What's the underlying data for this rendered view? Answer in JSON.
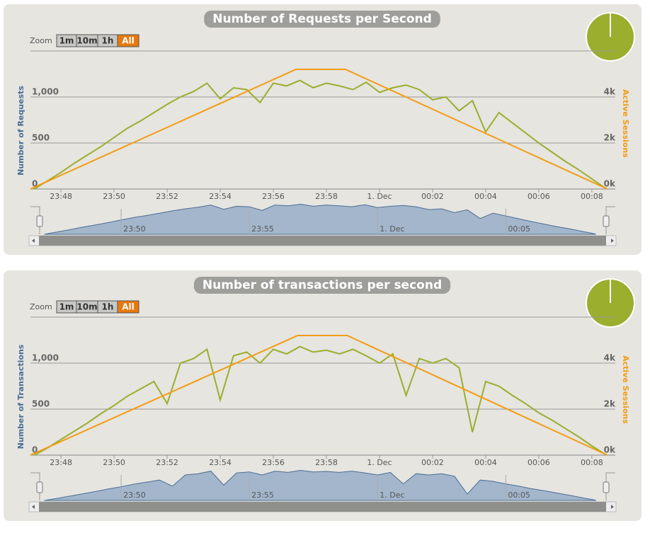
{
  "chart_data": [
    {
      "type": "line",
      "title": "Number of Requests per Second",
      "ylabel": "Number of Requests",
      "y2label": "Active Sessions",
      "zoom_label": "Zoom",
      "zoom_buttons": [
        "1m",
        "10m",
        "1h",
        "All"
      ],
      "zoom_selected": "All",
      "x": [
        "23:47",
        "23:47:30",
        "23:48",
        "23:48:30",
        "23:49",
        "23:49:30",
        "23:50",
        "23:50:30",
        "23:51",
        "23:51:30",
        "23:52",
        "23:52:30",
        "23:53",
        "23:53:30",
        "23:54",
        "23:54:30",
        "23:55",
        "23:55:30",
        "23:56",
        "23:56:30",
        "23:57",
        "23:57:30",
        "23:58",
        "23:58:30",
        "23:59",
        "23:59:30",
        "00:00",
        "00:00:30",
        "00:01",
        "00:01:30",
        "00:02",
        "00:02:30",
        "00:03",
        "00:03:30",
        "00:04",
        "00:04:30",
        "00:05",
        "00:05:30",
        "00:06",
        "00:06:30",
        "00:07",
        "00:07:30",
        "00:08",
        "00:08:30"
      ],
      "series": [
        {
          "color": "#9bae2e",
          "values": [
            0,
            90,
            180,
            280,
            370,
            460,
            560,
            660,
            740,
            830,
            920,
            1000,
            1060,
            1150,
            980,
            1100,
            1080,
            940,
            1150,
            1120,
            1180,
            1100,
            1150,
            1120,
            1080,
            1160,
            1050,
            1100,
            1130,
            1080,
            970,
            1000,
            850,
            960,
            620,
            830,
            720,
            610,
            500,
            400,
            300,
            210,
            110,
            10
          ]
        },
        {
          "color": "#f39c12",
          "axis": "y2",
          "x": [
            "23:46:51",
            "23:56:51",
            "23:58:43",
            "00:08:35"
          ],
          "values": [
            0,
            5200,
            5200,
            0
          ]
        }
      ],
      "xlim": [
        "23:46:51",
        "00:08:53"
      ],
      "xticks": [
        "23:48",
        "23:50",
        "23:52",
        "23:54",
        "23:56",
        "23:58",
        {
          "value": "00:00",
          "label": "1. Dec"
        },
        "00:02",
        "00:04",
        "00:06",
        "00:08"
      ],
      "ylim": [
        0,
        1500
      ],
      "yticks": [
        0,
        500,
        {
          "value": 1000,
          "label": "1,000"
        }
      ],
      "y2lim": [
        0,
        6000
      ],
      "y2ticks": [
        {
          "value": 0,
          "label": "0k"
        },
        {
          "value": 2000,
          "label": "2k"
        },
        {
          "value": 4000,
          "label": "4k"
        }
      ],
      "navigator_xticks": [
        "23:50",
        "23:55",
        {
          "value": "00:00",
          "label": "1. Dec"
        },
        "00:05"
      ],
      "grid": true
    },
    {
      "type": "line",
      "title": "Number of transactions per second",
      "ylabel": "Number of Transactions",
      "y2label": "Active Sessions",
      "zoom_label": "Zoom",
      "zoom_buttons": [
        "1m",
        "10m",
        "1h",
        "All"
      ],
      "zoom_selected": "All",
      "x": [
        "23:47",
        "23:47:30",
        "23:48",
        "23:48:30",
        "23:49",
        "23:49:30",
        "23:50",
        "23:50:30",
        "23:51",
        "23:51:30",
        "23:52",
        "23:52:30",
        "23:53",
        "23:53:30",
        "23:54",
        "23:54:30",
        "23:55",
        "23:55:30",
        "23:56",
        "23:56:30",
        "23:57",
        "23:57:30",
        "23:58",
        "23:58:30",
        "23:59",
        "23:59:30",
        "00:00",
        "00:00:30",
        "00:01",
        "00:01:30",
        "00:02",
        "00:02:30",
        "00:03",
        "00:03:30",
        "00:04",
        "00:04:30",
        "00:05",
        "00:05:30",
        "00:06",
        "00:06:30",
        "00:07",
        "00:07:30",
        "00:08",
        "00:08:30"
      ],
      "series": [
        {
          "color": "#9bae2e",
          "values": [
            0,
            80,
            170,
            260,
            350,
            450,
            540,
            640,
            720,
            800,
            560,
            1000,
            1050,
            1150,
            600,
            1080,
            1120,
            1000,
            1150,
            1100,
            1180,
            1120,
            1140,
            1100,
            1150,
            1080,
            1000,
            1100,
            650,
            1050,
            1000,
            1050,
            950,
            250,
            800,
            750,
            650,
            560,
            460,
            380,
            290,
            200,
            100,
            10
          ]
        },
        {
          "color": "#f39c12",
          "axis": "y2",
          "x": [
            "23:46:51",
            "23:56:55",
            "23:58:47",
            "00:08:35"
          ],
          "values": [
            0,
            5200,
            5200,
            0
          ]
        }
      ],
      "xlim": [
        "23:46:51",
        "00:08:53"
      ],
      "xticks": [
        "23:48",
        "23:50",
        "23:52",
        "23:54",
        "23:56",
        "23:58",
        {
          "value": "00:00",
          "label": "1. Dec"
        },
        "00:02",
        "00:04",
        "00:06",
        "00:08"
      ],
      "ylim": [
        0,
        1500
      ],
      "yticks": [
        0,
        500,
        {
          "value": 1000,
          "label": "1,000"
        }
      ],
      "y2lim": [
        0,
        6000
      ],
      "y2ticks": [
        {
          "value": 0,
          "label": "0k"
        },
        {
          "value": 2000,
          "label": "2k"
        },
        {
          "value": 4000,
          "label": "4k"
        }
      ],
      "navigator_xticks": [
        "23:50",
        "23:55",
        {
          "value": "00:00",
          "label": "1. Dec"
        },
        "00:05"
      ],
      "grid": true
    }
  ]
}
